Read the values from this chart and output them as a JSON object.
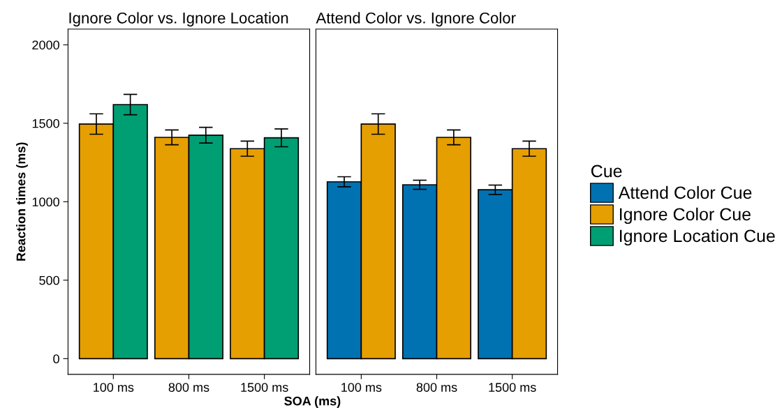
{
  "chart_data": [
    {
      "type": "bar",
      "title": "Ignore Color vs. Ignore Location",
      "xlabel": "SOA (ms)",
      "ylabel": "Reaction times (ms)",
      "legend_title": "Cue",
      "legend": "right",
      "grid": false,
      "categories": [
        "100 ms",
        "800 ms",
        "1500 ms"
      ],
      "ylim": [
        -100,
        2100
      ],
      "yticks": [
        0,
        500,
        1000,
        1500,
        2000
      ],
      "series": [
        {
          "name": "Ignore Color Cue",
          "color": "#e69f00",
          "values": [
            1495,
            1410,
            1338
          ],
          "errors": [
            65,
            47,
            48
          ]
        },
        {
          "name": "Ignore Location Cue",
          "color": "#009e73",
          "values": [
            1619,
            1424,
            1407
          ],
          "errors": [
            65,
            50,
            57
          ]
        }
      ]
    },
    {
      "type": "bar",
      "title": "Attend Color vs. Ignore Color",
      "legend": "right",
      "grid": false,
      "tick_labels": "x",
      "categories": [
        "100 ms",
        "800 ms",
        "1500 ms"
      ],
      "ylim": [
        -100,
        2100
      ],
      "series": [
        {
          "name": "Attend Color Cue",
          "color": "#0072b2",
          "values": [
            1127,
            1108,
            1076
          ],
          "errors": [
            32,
            29,
            30
          ]
        },
        {
          "name": "Ignore Color Cue",
          "color": "#e69f00",
          "values": [
            1495,
            1410,
            1338
          ],
          "errors": [
            65,
            47,
            48
          ]
        }
      ]
    }
  ]
}
